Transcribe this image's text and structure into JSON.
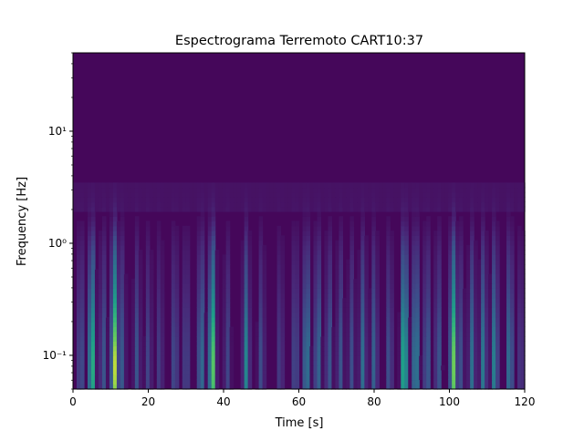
{
  "chart_data": {
    "type": "heatmap",
    "title": "Espectrograma Terremoto CART10:37",
    "xlabel": "Time [s]",
    "ylabel": "Frequency [Hz]",
    "xlim": [
      0,
      120
    ],
    "ylim": [
      0.05,
      50
    ],
    "yscale": "log",
    "colormap": "viridis",
    "grid": false,
    "x_ticks": [
      0,
      20,
      40,
      60,
      80,
      100,
      120
    ],
    "x_tick_labels": [
      "0",
      "20",
      "40",
      "60",
      "80",
      "100",
      "120"
    ],
    "y_ticks": [
      0.1,
      1,
      10
    ],
    "y_tick_labels": [
      "10⁻¹",
      "10⁰",
      "10¹"
    ],
    "background_intensity": 0.02,
    "bursts": [
      {
        "t": 2,
        "i": 0.3
      },
      {
        "t": 5,
        "i": 0.78
      },
      {
        "t": 8,
        "i": 0.3
      },
      {
        "t": 11,
        "i": 0.95
      },
      {
        "t": 13,
        "i": 0.3
      },
      {
        "t": 17,
        "i": 0.28
      },
      {
        "t": 20,
        "i": 0.22
      },
      {
        "t": 23,
        "i": 0.2
      },
      {
        "t": 27,
        "i": 0.28
      },
      {
        "t": 30,
        "i": 0.25
      },
      {
        "t": 34,
        "i": 0.45
      },
      {
        "t": 37,
        "i": 0.9
      },
      {
        "t": 41,
        "i": 0.22
      },
      {
        "t": 46,
        "i": 0.5
      },
      {
        "t": 50,
        "i": 0.25
      },
      {
        "t": 55,
        "i": 0.2
      },
      {
        "t": 59,
        "i": 0.28
      },
      {
        "t": 62,
        "i": 0.5
      },
      {
        "t": 65,
        "i": 0.4
      },
      {
        "t": 68,
        "i": 0.3
      },
      {
        "t": 71,
        "i": 0.28
      },
      {
        "t": 74,
        "i": 0.25
      },
      {
        "t": 77,
        "i": 0.4
      },
      {
        "t": 80,
        "i": 0.35
      },
      {
        "t": 84,
        "i": 0.28
      },
      {
        "t": 88,
        "i": 0.82
      },
      {
        "t": 91,
        "i": 0.55
      },
      {
        "t": 94,
        "i": 0.35
      },
      {
        "t": 97,
        "i": 0.3
      },
      {
        "t": 101,
        "i": 0.88
      },
      {
        "t": 103,
        "i": 0.25
      },
      {
        "t": 106,
        "i": 0.4
      },
      {
        "t": 109,
        "i": 0.45
      },
      {
        "t": 112,
        "i": 0.5
      },
      {
        "t": 116,
        "i": 0.45
      },
      {
        "t": 119,
        "i": 0.2
      }
    ]
  }
}
